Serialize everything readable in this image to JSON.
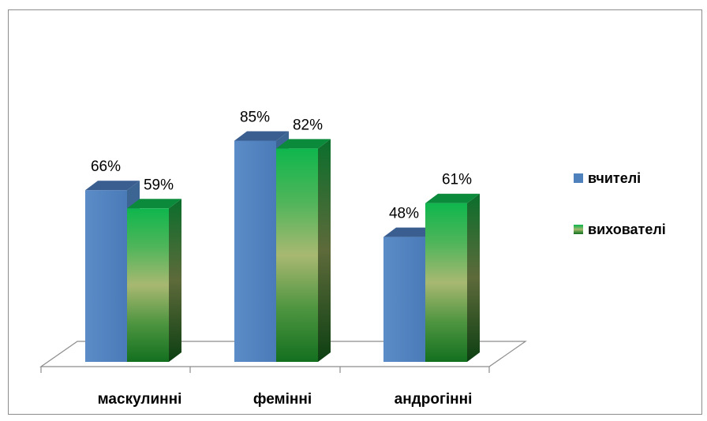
{
  "chart_data": {
    "type": "bar",
    "title": "",
    "xlabel": "",
    "ylabel": "",
    "ylim": [
      0,
      100
    ],
    "grid": false,
    "legend_position": "right",
    "categories": [
      "маскулинні",
      "фемінні",
      "андрогінні"
    ],
    "series": [
      {
        "name": "вчителі",
        "values": [
          66,
          85,
          48
        ],
        "labels": [
          "66%",
          "85%",
          "48%"
        ],
        "color": "#4f81bd"
      },
      {
        "name": "вихователі",
        "values": [
          59,
          82,
          61
        ],
        "labels": [
          "59%",
          "82%",
          "61%"
        ],
        "color": "#1fb24a"
      }
    ]
  }
}
